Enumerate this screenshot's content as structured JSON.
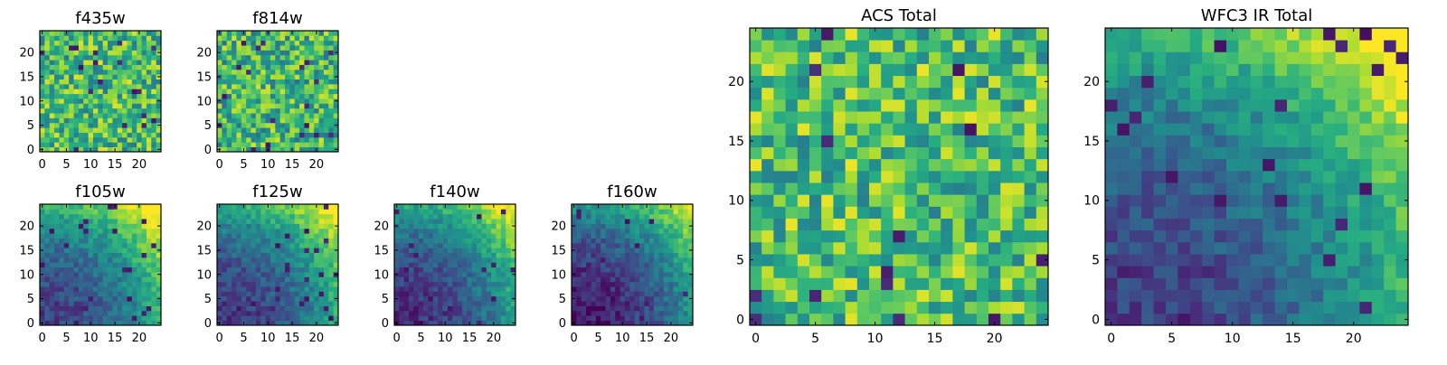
{
  "colormap": "viridis",
  "colors": {
    "viridis_low": "#440154",
    "viridis_mid": "#21918c",
    "viridis_high": "#fde725",
    "frame": "#000000",
    "background": "#ffffff"
  },
  "chart_data": [
    {
      "type": "heatmap",
      "title": "f435w",
      "grid_size": [
        25,
        25
      ],
      "xlim": [
        0,
        24
      ],
      "ylim": [
        0,
        24
      ],
      "xticks": [
        0,
        5,
        10,
        15,
        20
      ],
      "yticks": [
        0,
        5,
        10,
        15,
        20
      ],
      "pattern": "noise",
      "value_range": [
        0,
        1
      ],
      "mean_level": 0.68
    },
    {
      "type": "heatmap",
      "title": "f814w",
      "grid_size": [
        25,
        25
      ],
      "xlim": [
        0,
        24
      ],
      "ylim": [
        0,
        24
      ],
      "xticks": [
        0,
        5,
        10,
        15,
        20
      ],
      "yticks": [
        0,
        5,
        10,
        15,
        20
      ],
      "pattern": "noise",
      "value_range": [
        0,
        1
      ],
      "mean_level": 0.66
    },
    {
      "type": "heatmap",
      "title": "f105w",
      "grid_size": [
        25,
        25
      ],
      "xlim": [
        0,
        24
      ],
      "ylim": [
        0,
        24
      ],
      "xticks": [
        0,
        5,
        10,
        15,
        20
      ],
      "yticks": [
        0,
        5,
        10,
        15,
        20
      ],
      "pattern": "gradient-top-right",
      "value_range": [
        0,
        1
      ],
      "mean_level": 0.45
    },
    {
      "type": "heatmap",
      "title": "f125w",
      "grid_size": [
        25,
        25
      ],
      "xlim": [
        0,
        24
      ],
      "ylim": [
        0,
        24
      ],
      "xticks": [
        0,
        5,
        10,
        15,
        20
      ],
      "yticks": [
        0,
        5,
        10,
        15,
        20
      ],
      "pattern": "gradient-top-right",
      "value_range": [
        0,
        1
      ],
      "mean_level": 0.42
    },
    {
      "type": "heatmap",
      "title": "f140w",
      "grid_size": [
        25,
        25
      ],
      "xlim": [
        0,
        24
      ],
      "ylim": [
        0,
        24
      ],
      "xticks": [
        0,
        5,
        10,
        15,
        20
      ],
      "yticks": [
        0,
        5,
        10,
        15,
        20
      ],
      "pattern": "gradient-top-right",
      "value_range": [
        0,
        1
      ],
      "mean_level": 0.38
    },
    {
      "type": "heatmap",
      "title": "f160w",
      "grid_size": [
        25,
        25
      ],
      "xlim": [
        0,
        24
      ],
      "ylim": [
        0,
        24
      ],
      "xticks": [
        0,
        5,
        10,
        15,
        20
      ],
      "yticks": [
        0,
        5,
        10,
        15,
        20
      ],
      "pattern": "gradient-top-right",
      "value_range": [
        0,
        1
      ],
      "mean_level": 0.32
    },
    {
      "type": "heatmap",
      "title": "ACS Total",
      "grid_size": [
        25,
        25
      ],
      "xlim": [
        0,
        24
      ],
      "ylim": [
        0,
        24
      ],
      "xticks": [
        0,
        5,
        10,
        15,
        20
      ],
      "yticks": [
        0,
        5,
        10,
        15,
        20
      ],
      "pattern": "noise",
      "value_range": [
        0,
        1
      ],
      "mean_level": 0.7
    },
    {
      "type": "heatmap",
      "title": "WFC3 IR Total",
      "grid_size": [
        25,
        25
      ],
      "xlim": [
        0,
        24
      ],
      "ylim": [
        0,
        24
      ],
      "xticks": [
        0,
        5,
        10,
        15,
        20
      ],
      "yticks": [
        0,
        5,
        10,
        15,
        20
      ],
      "pattern": "gradient-top-right",
      "value_range": [
        0,
        1
      ],
      "mean_level": 0.45
    }
  ]
}
